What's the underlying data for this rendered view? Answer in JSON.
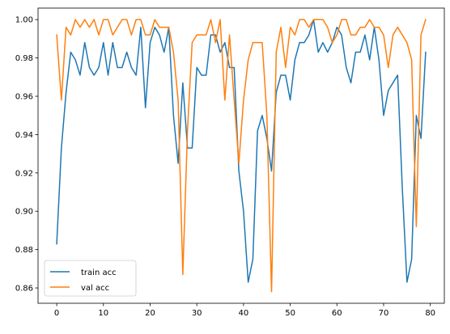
{
  "chart_data": {
    "type": "line",
    "xlim": [
      -4,
      83
    ],
    "ylim": [
      0.852,
      1.006
    ],
    "xticks": [
      0,
      10,
      20,
      30,
      40,
      50,
      60,
      70,
      80
    ],
    "yticks": [
      0.86,
      0.88,
      0.9,
      0.92,
      0.94,
      0.96,
      0.98,
      1.0
    ],
    "xtick_labels": [
      "0",
      "10",
      "20",
      "30",
      "40",
      "50",
      "60",
      "70",
      "80"
    ],
    "ytick_labels": [
      "0.86",
      "0.88",
      "0.90",
      "0.92",
      "0.94",
      "0.96",
      "0.98",
      "1.00"
    ],
    "grid": false,
    "legend_position": "lower-left",
    "series": [
      {
        "name": "train acc",
        "color": "#1f77b4",
        "x": [
          0,
          1,
          2,
          3,
          4,
          5,
          6,
          7,
          8,
          9,
          10,
          11,
          12,
          13,
          14,
          15,
          16,
          17,
          18,
          19,
          20,
          21,
          22,
          23,
          24,
          25,
          26,
          27,
          28,
          29,
          30,
          31,
          32,
          33,
          34,
          35,
          36,
          37,
          38,
          39,
          40,
          41,
          42,
          43,
          44,
          45,
          46,
          47,
          48,
          49,
          50,
          51,
          52,
          53,
          54,
          55,
          56,
          57,
          58,
          59,
          60,
          61,
          62,
          63,
          64,
          65,
          66,
          67,
          68,
          69,
          70,
          71,
          72,
          73,
          74,
          75,
          76,
          77,
          78,
          79
        ],
        "y": [
          0.883,
          0.933,
          0.962,
          0.983,
          0.979,
          0.971,
          0.988,
          0.975,
          0.971,
          0.975,
          0.988,
          0.971,
          0.988,
          0.975,
          0.975,
          0.983,
          0.975,
          0.971,
          0.996,
          0.954,
          0.988,
          0.996,
          0.992,
          0.983,
          0.996,
          0.95,
          0.925,
          0.967,
          0.933,
          0.933,
          0.975,
          0.971,
          0.971,
          0.992,
          0.992,
          0.983,
          0.988,
          0.975,
          0.975,
          0.921,
          0.9,
          0.863,
          0.875,
          0.942,
          0.95,
          0.938,
          0.921,
          0.962,
          0.971,
          0.971,
          0.958,
          0.979,
          0.988,
          0.988,
          0.992,
          1.0,
          0.983,
          0.988,
          0.983,
          0.988,
          0.996,
          0.992,
          0.975,
          0.967,
          0.983,
          0.983,
          0.992,
          0.979,
          0.996,
          0.979,
          0.95,
          0.963,
          0.967,
          0.971,
          0.912,
          0.863,
          0.875,
          0.95,
          0.938,
          0.983
        ]
      },
      {
        "name": "val acc",
        "color": "#ff7f0e",
        "x": [
          0,
          1,
          2,
          3,
          4,
          5,
          6,
          7,
          8,
          9,
          10,
          11,
          12,
          13,
          14,
          15,
          16,
          17,
          18,
          19,
          20,
          21,
          22,
          23,
          24,
          25,
          26,
          27,
          28,
          29,
          30,
          31,
          32,
          33,
          34,
          35,
          36,
          37,
          38,
          39,
          40,
          41,
          42,
          43,
          44,
          45,
          46,
          47,
          48,
          49,
          50,
          51,
          52,
          53,
          54,
          55,
          56,
          57,
          58,
          59,
          60,
          61,
          62,
          63,
          64,
          65,
          66,
          67,
          68,
          69,
          70,
          71,
          72,
          73,
          74,
          75,
          76,
          77,
          78,
          79
        ],
        "y": [
          0.992,
          0.958,
          0.996,
          0.992,
          1.0,
          0.996,
          1.0,
          0.996,
          1.0,
          0.992,
          1.0,
          1.0,
          0.992,
          0.996,
          1.0,
          1.0,
          0.992,
          1.0,
          1.0,
          0.992,
          0.992,
          1.0,
          0.996,
          0.996,
          0.996,
          0.983,
          0.958,
          0.867,
          0.942,
          0.988,
          0.992,
          0.992,
          0.992,
          1.0,
          0.988,
          1.0,
          0.958,
          0.992,
          0.958,
          0.925,
          0.958,
          0.979,
          0.988,
          0.988,
          0.988,
          0.95,
          0.858,
          0.983,
          0.996,
          0.975,
          0.996,
          0.992,
          1.0,
          1.0,
          0.996,
          1.0,
          1.0,
          1.0,
          0.996,
          0.988,
          0.992,
          1.0,
          1.0,
          0.992,
          0.992,
          0.996,
          0.996,
          1.0,
          0.996,
          0.996,
          0.992,
          0.975,
          0.992,
          0.996,
          0.992,
          0.988,
          0.979,
          0.892,
          0.992,
          1.0
        ]
      }
    ]
  }
}
